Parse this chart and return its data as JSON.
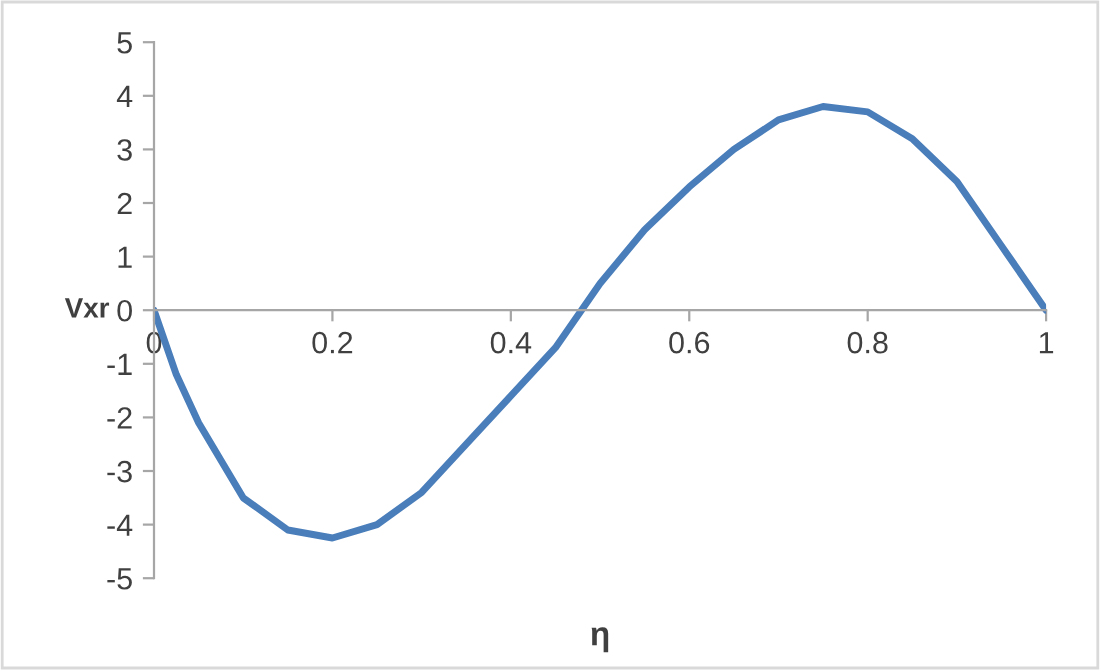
{
  "chart_data": {
    "type": "line",
    "xlabel": "η",
    "ylabel": "Vxr",
    "x": [
      0,
      0.025,
      0.05,
      0.1,
      0.15,
      0.2,
      0.25,
      0.3,
      0.35,
      0.4,
      0.45,
      0.5,
      0.55,
      0.6,
      0.65,
      0.7,
      0.75,
      0.8,
      0.85,
      0.9,
      0.95,
      1
    ],
    "series": [
      {
        "color": "#4a7ebb",
        "values": [
          0,
          -1.2,
          -2.1,
          -3.5,
          -4.1,
          -4.25,
          -4.0,
          -3.4,
          -2.5,
          -1.6,
          -0.7,
          0.5,
          1.5,
          2.3,
          3.0,
          3.55,
          3.8,
          3.7,
          3.2,
          2.4,
          1.2,
          0
        ]
      }
    ],
    "xlim": [
      0,
      1
    ],
    "xticks": [
      0,
      0.2,
      0.4,
      0.6,
      0.8,
      1
    ],
    "ylim": [
      -5,
      5
    ],
    "yticks": [
      -5,
      -4,
      -3,
      -2,
      -1,
      0,
      1,
      2,
      3,
      4,
      5
    ],
    "grid": false,
    "legend": false,
    "marker": "none",
    "line_style": "solid"
  }
}
